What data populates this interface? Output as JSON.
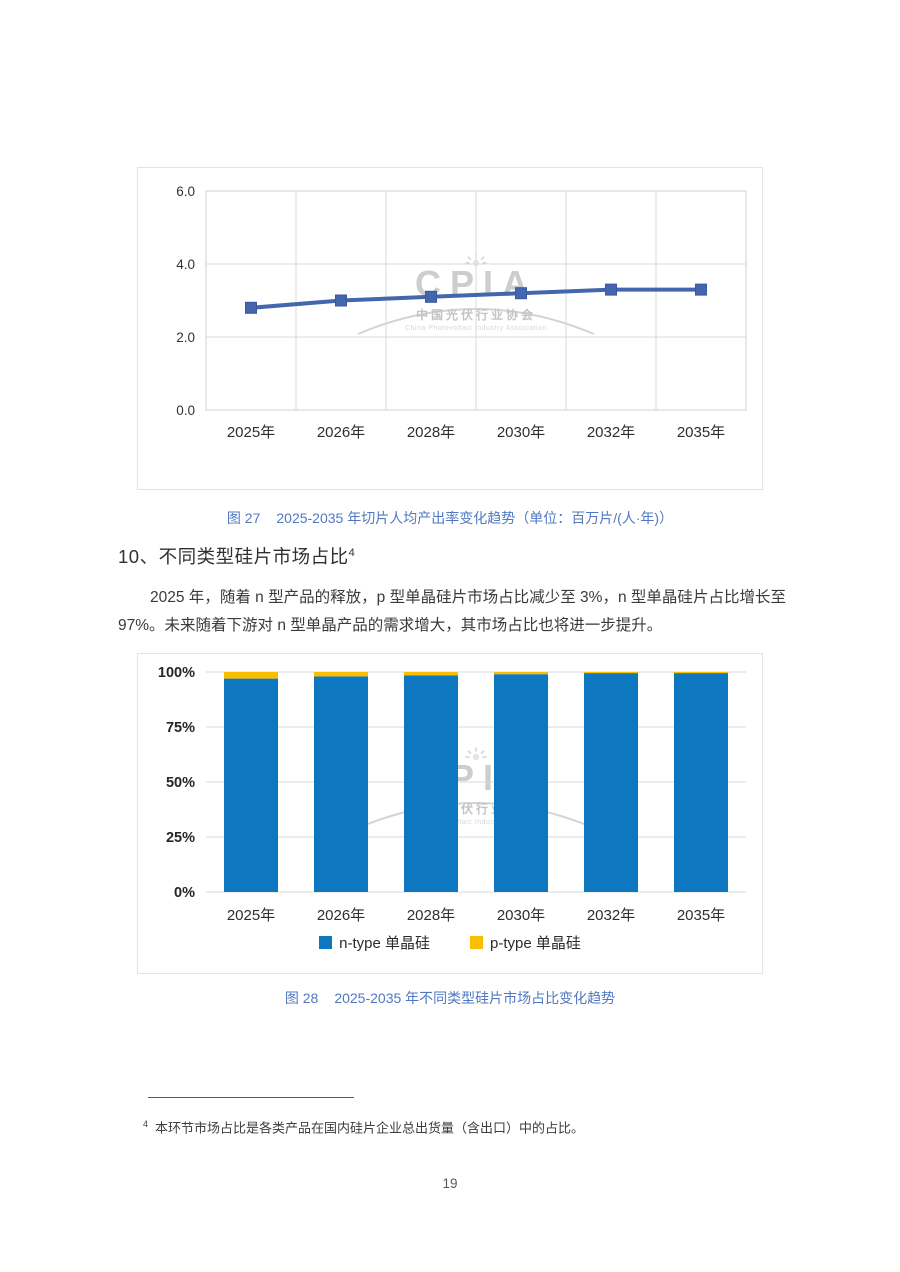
{
  "colors": {
    "caption_blue": "#5078c2",
    "line_blue": "#4466ae",
    "bar_blue": "#0d78c0",
    "bar_yellow": "#f9be00",
    "grid_gray": "#d9d9d9",
    "watermark_gray": "#c8c8c8",
    "body_text": "#3a3a3a"
  },
  "watermark": {
    "acronym": "CPIA",
    "name_cn": "中国光伏行业协会",
    "name_en": "China Photovoltaic Industry Association"
  },
  "figure27": {
    "caption_label": "图 27",
    "caption_text": "2025-2035 年切片人均产出率变化趋势（单位：百万片/(人·年)）"
  },
  "section10": {
    "heading": "10、不同类型硅片市场占比",
    "footnote_ref": "4",
    "paragraph": "2025 年，随着 n 型产品的释放，p 型单晶硅片市场占比减少至 3%，n 型单晶硅片占比增长至 97%。未来随着下游对 n 型单晶产品的需求增大，其市场占比也将进一步提升。"
  },
  "figure28": {
    "caption_label": "图 28",
    "caption_text": "2025-2035 年不同类型硅片市场占比变化趋势"
  },
  "footnote": {
    "ref": "4",
    "text": "本环节市场占比是各类产品在国内硅片企业总出货量（含出口）中的占比。"
  },
  "page_number": "19",
  "chart_data": [
    {
      "type": "line",
      "figure": "图 27",
      "title": "2025-2035 年切片人均产出率变化趋势",
      "unit": "百万片/(人·年)",
      "categories": [
        "2025年",
        "2026年",
        "2028年",
        "2030年",
        "2032年",
        "2035年"
      ],
      "values": [
        2.8,
        3.0,
        3.1,
        3.2,
        3.3,
        3.3
      ],
      "ylim": [
        0,
        6
      ],
      "yticks": [
        "0.0",
        "2.0",
        "4.0",
        "6.0"
      ],
      "grid": "horizontal-and-vertical",
      "legend": "none",
      "line_color": "#4466ae",
      "marker": "square"
    },
    {
      "type": "bar",
      "stacked": true,
      "figure": "图 28",
      "title": "2025-2035 年不同类型硅片市场占比变化趋势",
      "categories": [
        "2025年",
        "2026年",
        "2028年",
        "2030年",
        "2032年",
        "2035年"
      ],
      "series": [
        {
          "name": "n-type 单晶硅",
          "color": "#0d78c0",
          "values": [
            97,
            98,
            98.5,
            99,
            99.5,
            99.5
          ]
        },
        {
          "name": "p-type 单晶硅",
          "color": "#f9be00",
          "values": [
            3,
            2,
            1.5,
            1,
            0.5,
            0.5
          ]
        }
      ],
      "ylim": [
        0,
        100
      ],
      "yticks": [
        "0%",
        "25%",
        "50%",
        "75%",
        "100%"
      ],
      "grid": "horizontal",
      "legend_position": "bottom"
    }
  ]
}
